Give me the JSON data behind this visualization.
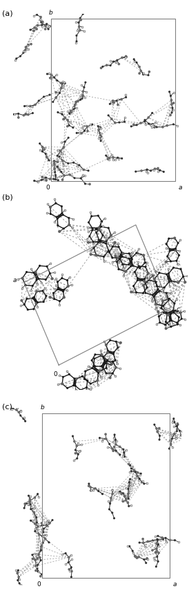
{
  "figure_width": 2.74,
  "figure_height": 8.55,
  "dpi": 100,
  "bg_color": "#ffffff",
  "panel_labels": [
    "(a)",
    "(b)",
    "(c)"
  ],
  "panel_label_fontsize": 8,
  "panels": [
    {
      "id": "a",
      "cell_gray": "#808080",
      "dark_atom": "#303030",
      "mid_atom": "#686868",
      "light_atom": "#ffffff",
      "bond_color": "#303030",
      "hbond_color": "#909090"
    },
    {
      "id": "b",
      "cell_gray": "#808080",
      "dark_atom": "#1a1a1a",
      "mid_atom": "#606060",
      "light_atom": "#ffffff",
      "bond_color": "#1a1a1a",
      "hbond_color": "#909090"
    },
    {
      "id": "c",
      "cell_gray": "#808080",
      "dark_atom": "#303030",
      "mid_atom": "#686868",
      "light_atom": "#ffffff",
      "bond_color": "#303030",
      "hbond_color": "#909090"
    }
  ]
}
